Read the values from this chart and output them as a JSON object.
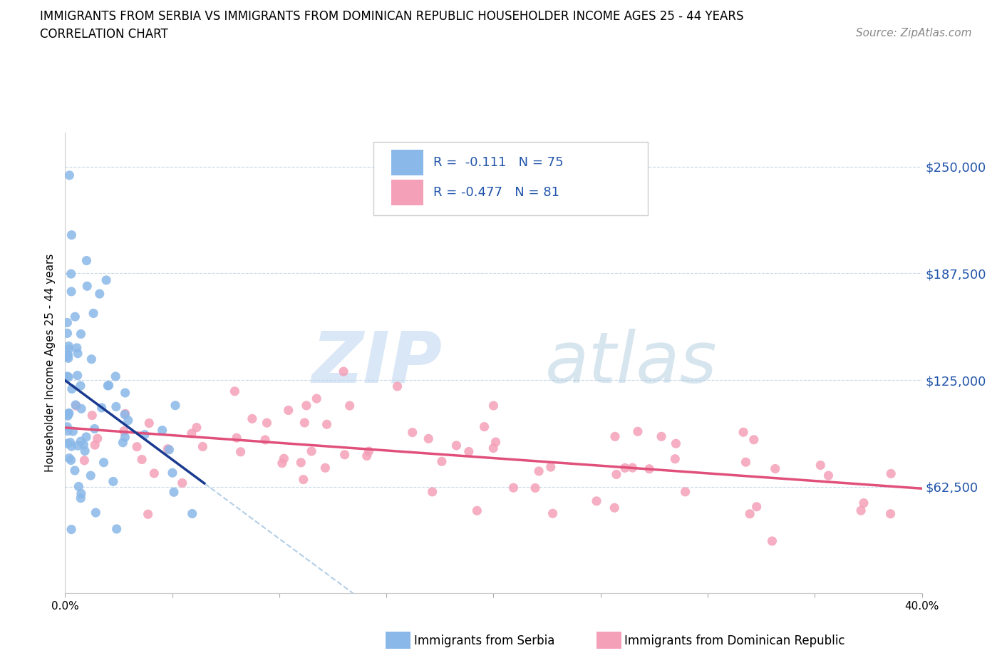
{
  "title_line1": "IMMIGRANTS FROM SERBIA VS IMMIGRANTS FROM DOMINICAN REPUBLIC HOUSEHOLDER INCOME AGES 25 - 44 YEARS",
  "title_line2": "CORRELATION CHART",
  "source_text": "Source: ZipAtlas.com",
  "ylabel": "Householder Income Ages 25 - 44 years",
  "xlim": [
    0.0,
    0.4
  ],
  "ylim": [
    0,
    270000
  ],
  "yticks": [
    0,
    62500,
    125000,
    187500,
    250000
  ],
  "ytick_labels": [
    "",
    "$62,500",
    "$125,000",
    "$187,500",
    "$250,000"
  ],
  "xticks": [
    0.0,
    0.05,
    0.1,
    0.15,
    0.2,
    0.25,
    0.3,
    0.35,
    0.4
  ],
  "xtick_labels": [
    "0.0%",
    "",
    "",
    "",
    "",
    "",
    "",
    "",
    "40.0%"
  ],
  "serbia_color": "#8ab8e8",
  "serbia_line_color": "#1a3a8f",
  "dr_color": "#f4a0b8",
  "dr_line_color": "#e0507a",
  "dash_color": "#9abfe0",
  "legend_R_serbia": "R =  -0.111",
  "legend_N_serbia": "N = 75",
  "legend_R_dr": "R = -0.477",
  "legend_N_dr": "N = 81",
  "watermark_ZIP_color": "#c0d8f0",
  "watermark_atlas_color": "#b0cce0",
  "background": "#ffffff",
  "grid_color": "#c8d8e8",
  "tick_label_color": "#2255aa",
  "title_color": "#000000",
  "source_color": "#888888"
}
